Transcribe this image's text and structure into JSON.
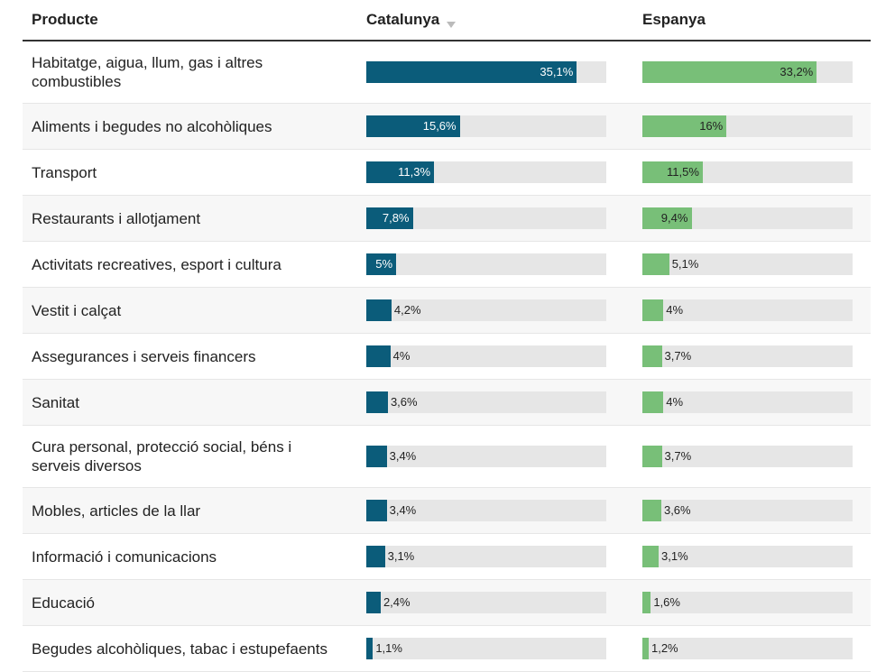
{
  "chart_data": {
    "type": "bar-table",
    "columns": [
      "Producte",
      "Catalunya",
      "Espanya"
    ],
    "categories": [
      "Habitatge, aigua, llum, gas i altres combustibles",
      "Aliments i begudes no alcohòliques",
      "Transport",
      "Restaurants i allotjament",
      "Activitats recreatives, esport i cultura",
      "Vestit i calçat",
      "Assegurances i serveis financers",
      "Sanitat",
      "Cura personal, protecció social, béns i serveis diversos",
      "Mobles, articles de la llar",
      "Informació i comunicacions",
      "Educació",
      "Begudes alcohòliques, tabac i estupefaents"
    ],
    "ylim": [
      0,
      40
    ],
    "series": [
      {
        "name": "Catalunya",
        "color": "#0b5c7a",
        "values": [
          35.1,
          15.6,
          11.3,
          7.8,
          5,
          4.2,
          4,
          3.6,
          3.4,
          3.4,
          3.1,
          2.4,
          1.1
        ],
        "value_labels": [
          "35,1%",
          "15,6%",
          "11,3%",
          "7,8%",
          "5%",
          "4,2%",
          "4%",
          "3,6%",
          "3,4%",
          "3,4%",
          "3,1%",
          "2,4%",
          "1,1%"
        ],
        "label_color": "#ffffff"
      },
      {
        "name": "Espanya",
        "color": "#78bf78",
        "values": [
          33.2,
          16,
          11.5,
          9.4,
          5.1,
          4,
          3.7,
          4,
          3.7,
          3.6,
          3.1,
          1.6,
          1.2
        ],
        "value_labels": [
          "33,2%",
          "16%",
          "11,5%",
          "9,4%",
          "5,1%",
          "4%",
          "3,7%",
          "4%",
          "3,7%",
          "3,6%",
          "3,1%",
          "1,6%",
          "1,2%"
        ],
        "label_color": "#222222"
      }
    ]
  }
}
